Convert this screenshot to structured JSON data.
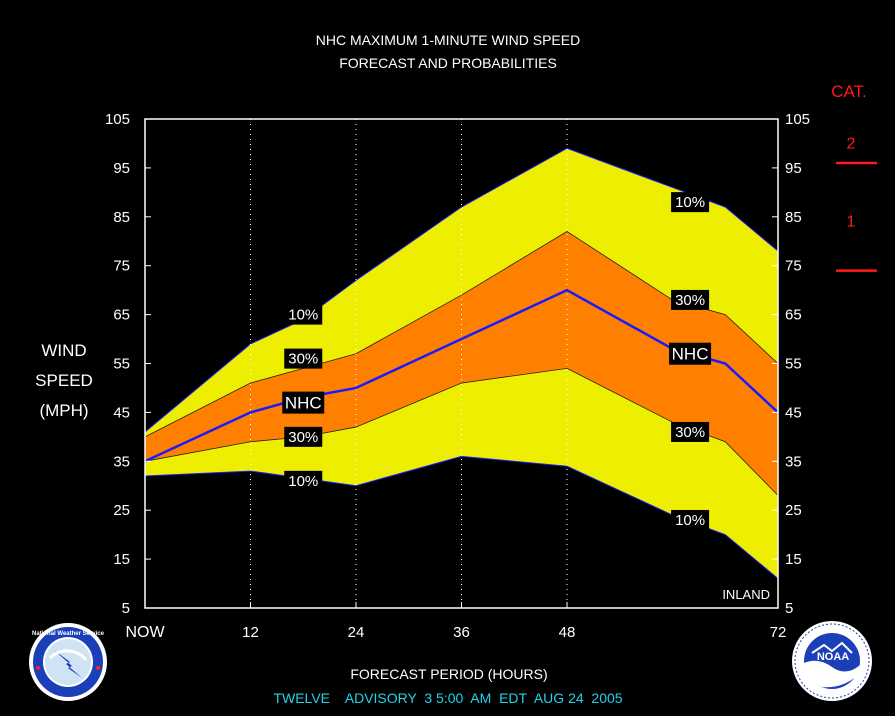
{
  "chart_data": {
    "type": "area",
    "title": "NHC MAXIMUM 1-MINUTE WIND SPEED",
    "subtitle": "FORECAST AND PROBABILITIES",
    "xlabel": "FORECAST PERIOD (HOURS)",
    "ylabel": [
      "WIND",
      "SPEED",
      "(MPH)"
    ],
    "xlim": [
      0,
      72
    ],
    "ylim": [
      5,
      105
    ],
    "x_ticks": [
      {
        "x": 0,
        "label": "NOW"
      },
      {
        "x": 12,
        "label": "12"
      },
      {
        "x": 24,
        "label": "24"
      },
      {
        "x": 36,
        "label": "36"
      },
      {
        "x": 48,
        "label": "48"
      },
      {
        "x": 72,
        "label": "72"
      }
    ],
    "vertical_gridlines": [
      12,
      24,
      36,
      48
    ],
    "y_ticks": [
      5,
      15,
      25,
      35,
      45,
      55,
      65,
      75,
      85,
      95,
      105
    ],
    "x": [
      0,
      12,
      18,
      24,
      36,
      48,
      60,
      66,
      72
    ],
    "series": [
      {
        "name": "10%",
        "role": "upper",
        "values": [
          41,
          59,
          64,
          72,
          87,
          99,
          91,
          87,
          78
        ]
      },
      {
        "name": "30%",
        "role": "upper",
        "values": [
          40,
          51,
          54,
          57,
          69,
          82,
          68,
          65,
          55
        ]
      },
      {
        "name": "NHC",
        "role": "forecast",
        "values": [
          35,
          45,
          48,
          50,
          60,
          70,
          58,
          55,
          45
        ]
      },
      {
        "name": "30%",
        "role": "lower",
        "values": [
          35,
          39,
          40,
          42,
          51,
          54,
          43,
          39,
          28
        ]
      },
      {
        "name": "10%",
        "role": "lower",
        "values": [
          32,
          33,
          31.5,
          30,
          36,
          34,
          24,
          20,
          11
        ]
      }
    ],
    "band_labels": [
      {
        "text": "10%",
        "x": 18,
        "y": 65
      },
      {
        "text": "30%",
        "x": 18,
        "y": 56
      },
      {
        "text": "NHC",
        "x": 18,
        "y": 47
      },
      {
        "text": "30%",
        "x": 18,
        "y": 40
      },
      {
        "text": "10%",
        "x": 18,
        "y": 31
      },
      {
        "text": "10%",
        "x": 62,
        "y": 88
      },
      {
        "text": "30%",
        "x": 62,
        "y": 68
      },
      {
        "text": "NHC",
        "x": 62,
        "y": 57
      },
      {
        "text": "30%",
        "x": 62,
        "y": 41
      },
      {
        "text": "10%",
        "x": 62,
        "y": 23
      }
    ],
    "annotation": "INLAND",
    "category_scale": {
      "header": "CAT.",
      "labels": [
        {
          "text": "2",
          "y": 100
        },
        {
          "text": "1",
          "y": 84
        }
      ],
      "thresholds": [
        96,
        74
      ]
    },
    "colors": {
      "outer_band": "#eeee00",
      "inner_band": "#ff8000",
      "forecast_line": "#1a1aff",
      "plot_background": "#000000",
      "category": "#ff1a1a",
      "footer": "#22d3e6"
    }
  },
  "footer": "TWELVE    ADVISORY  3 5:00  AM  EDT  AUG 24  2005",
  "logos": {
    "left": "National Weather Service",
    "right": "NOAA"
  }
}
